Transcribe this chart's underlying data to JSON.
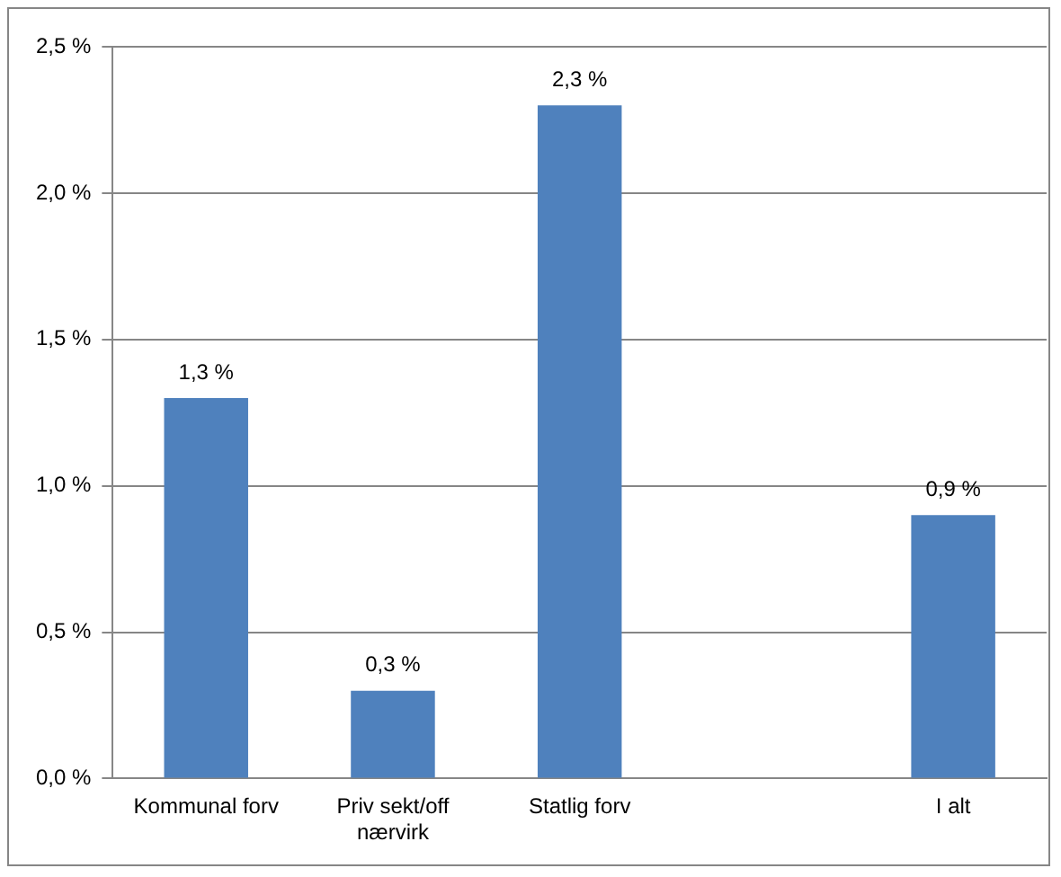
{
  "chart_data": {
    "type": "bar",
    "categories": [
      "Kommunal forv",
      "Priv sekt/off nærvirk",
      "Statlig forv",
      null,
      "I alt"
    ],
    "values": [
      1.3,
      0.3,
      2.3,
      null,
      0.9
    ],
    "value_labels": [
      "1,3 %",
      "0,3 %",
      "2,3 %",
      null,
      "0,9 %"
    ],
    "color": "#4f81bd",
    "ylim": [
      0,
      2.5
    ],
    "yticks": [
      {
        "value": 0,
        "label": "0,0 %"
      },
      {
        "value": 0.5,
        "label": "0,5 %"
      },
      {
        "value": 1,
        "label": "1,0 %"
      },
      {
        "value": 1.5,
        "label": "1,5 %"
      },
      {
        "value": 2,
        "label": "2,0 %"
      },
      {
        "value": 2.5,
        "label": "2,5 %"
      }
    ],
    "grid": "y"
  }
}
